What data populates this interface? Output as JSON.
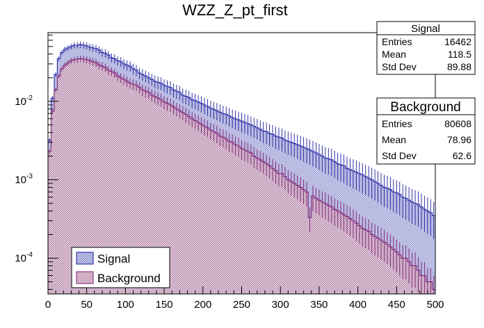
{
  "chart_data": {
    "type": "histogram",
    "title": "WZZ_Z_pt_first",
    "xlabel": "",
    "ylabel": "",
    "x_range": [
      0,
      500
    ],
    "x_ticks": [
      0,
      50,
      100,
      150,
      200,
      250,
      300,
      350,
      400,
      450,
      500
    ],
    "y_scale": "log",
    "y_range": [
      3.5e-05,
      0.075
    ],
    "y_ticks": [
      {
        "value": 0.0001,
        "base": "10",
        "exp": "-4"
      },
      {
        "value": 0.001,
        "base": "10",
        "exp": "-3"
      },
      {
        "value": 0.01,
        "base": "10",
        "exp": "-2"
      }
    ],
    "bin_width": 4,
    "series": [
      {
        "name": "Signal",
        "fill_color": "#c9cbe9",
        "line_color": "#1a1aa0",
        "values": [
          0.0032,
          0.011,
          0.022,
          0.035,
          0.042,
          0.046,
          0.048,
          0.05,
          0.052,
          0.052,
          0.053,
          0.052,
          0.051,
          0.049,
          0.048,
          0.047,
          0.045,
          0.042,
          0.041,
          0.039,
          0.036,
          0.035,
          0.033,
          0.032,
          0.03,
          0.029,
          0.028,
          0.026,
          0.025,
          0.023,
          0.022,
          0.021,
          0.02,
          0.019,
          0.018,
          0.0175,
          0.017,
          0.016,
          0.0155,
          0.015,
          0.014,
          0.0135,
          0.013,
          0.012,
          0.0116,
          0.0112,
          0.0105,
          0.0102,
          0.0098,
          0.0094,
          0.009,
          0.0086,
          0.0082,
          0.0079,
          0.0076,
          0.0073,
          0.007,
          0.0068,
          0.0065,
          0.0062,
          0.006,
          0.0058,
          0.0056,
          0.0054,
          0.0052,
          0.005,
          0.0048,
          0.0046,
          0.0044,
          0.0042,
          0.0041,
          0.0039,
          0.0038,
          0.0036,
          0.0035,
          0.0034,
          0.0032,
          0.0031,
          0.003,
          0.0029,
          0.0028,
          0.0027,
          0.0026,
          0.0025,
          0.0024,
          0.0023,
          0.0022,
          0.0021,
          0.002,
          0.0019,
          0.00185,
          0.0018,
          0.0017,
          0.0016,
          0.00155,
          0.0015,
          0.0014,
          0.00135,
          0.0013,
          0.00125,
          0.0012,
          0.00115,
          0.0011,
          0.00105,
          0.001,
          0.00095,
          0.0009,
          0.00085,
          0.0008,
          0.00078,
          0.00075,
          0.0007,
          0.00068,
          0.00065,
          0.0006,
          0.00058,
          0.00055,
          0.00052,
          0.0005,
          0.00048,
          0.00045,
          0.00042,
          0.0004,
          0.00038,
          0.00035
        ]
      },
      {
        "name": "Background",
        "fill_color": "#e9d6da",
        "line_color": "#7a1a70",
        "values": [
          0.0023,
          0.0075,
          0.014,
          0.021,
          0.026,
          0.029,
          0.031,
          0.033,
          0.034,
          0.0345,
          0.035,
          0.0345,
          0.034,
          0.033,
          0.032,
          0.031,
          0.029,
          0.028,
          0.027,
          0.025,
          0.024,
          0.023,
          0.021,
          0.02,
          0.019,
          0.018,
          0.017,
          0.0165,
          0.016,
          0.015,
          0.014,
          0.0135,
          0.013,
          0.012,
          0.0115,
          0.011,
          0.0105,
          0.0098,
          0.0094,
          0.009,
          0.0085,
          0.008,
          0.0076,
          0.0072,
          0.0068,
          0.0064,
          0.006,
          0.0057,
          0.0054,
          0.0051,
          0.0048,
          0.0046,
          0.0043,
          0.0041,
          0.0039,
          0.0036,
          0.0035,
          0.0033,
          0.0031,
          0.003,
          0.0028,
          0.0027,
          0.0025,
          0.0024,
          0.0023,
          0.0022,
          0.002,
          0.0019,
          0.0018,
          0.0017,
          0.0016,
          0.0015,
          0.0014,
          0.0013,
          0.0012,
          0.0012,
          0.0011,
          0.001,
          0.00095,
          0.0009,
          0.00085,
          0.0008,
          0.00075,
          0.0007,
          0.00033,
          0.00062,
          0.00058,
          0.00055,
          0.00052,
          0.0005,
          0.00047,
          0.00045,
          0.00042,
          0.0004,
          0.00038,
          0.00036,
          0.00034,
          0.00032,
          0.0003,
          0.00028,
          0.00026,
          0.00024,
          0.00023,
          0.00022,
          0.0002,
          0.00019,
          0.00018,
          0.00017,
          0.00016,
          0.00015,
          0.00014,
          0.00013,
          0.00012,
          0.00011,
          0.0001,
          0.0001,
          9e-05,
          8e-05,
          8e-05,
          7e-05,
          6e-05,
          6e-05,
          5e-05,
          5e-05,
          4e-05
        ]
      }
    ],
    "stats": [
      {
        "name": "Signal",
        "entries": "16462",
        "mean": "118.5",
        "std_dev": "89.88"
      },
      {
        "name": "Background",
        "entries": "80608",
        "mean": "78.96",
        "std_dev": "62.6"
      }
    ],
    "stat_labels": {
      "entries": "Entries",
      "mean": "Mean",
      "std_dev": "Std Dev"
    },
    "legend": [
      "Signal",
      "Background"
    ],
    "legend_position": "bottom-left"
  }
}
